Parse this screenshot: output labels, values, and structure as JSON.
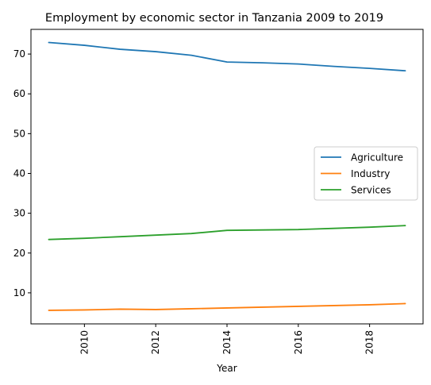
{
  "chart_data": {
    "type": "line",
    "title": "Employment by economic sector in Tanzania 2009 to 2019",
    "xlabel": "Year",
    "ylabel": "",
    "x": [
      2009,
      2010,
      2011,
      2012,
      2013,
      2014,
      2015,
      2016,
      2017,
      2018,
      2019
    ],
    "xlim": [
      2008.5,
      2019.5
    ],
    "ylim": [
      2.2,
      76.2
    ],
    "x_ticks": [
      2010,
      2012,
      2014,
      2016,
      2018
    ],
    "y_ticks": [
      10,
      20,
      30,
      40,
      50,
      60,
      70
    ],
    "x_tick_rotation": "vertical",
    "grid": false,
    "legend_position": "center-right",
    "series": [
      {
        "name": "Agriculture",
        "color": "#1f77b4",
        "values": [
          72.9,
          72.2,
          71.2,
          70.6,
          69.7,
          68.0,
          67.8,
          67.5,
          66.9,
          66.4,
          65.8
        ]
      },
      {
        "name": "Industry",
        "color": "#ff7f0e",
        "values": [
          5.6,
          5.7,
          5.9,
          5.8,
          6.0,
          6.2,
          6.4,
          6.6,
          6.8,
          7.0,
          7.3
        ]
      },
      {
        "name": "Services",
        "color": "#2ca02c",
        "values": [
          23.4,
          23.7,
          24.1,
          24.5,
          24.9,
          25.7,
          25.8,
          25.9,
          26.2,
          26.5,
          26.9
        ]
      }
    ]
  }
}
